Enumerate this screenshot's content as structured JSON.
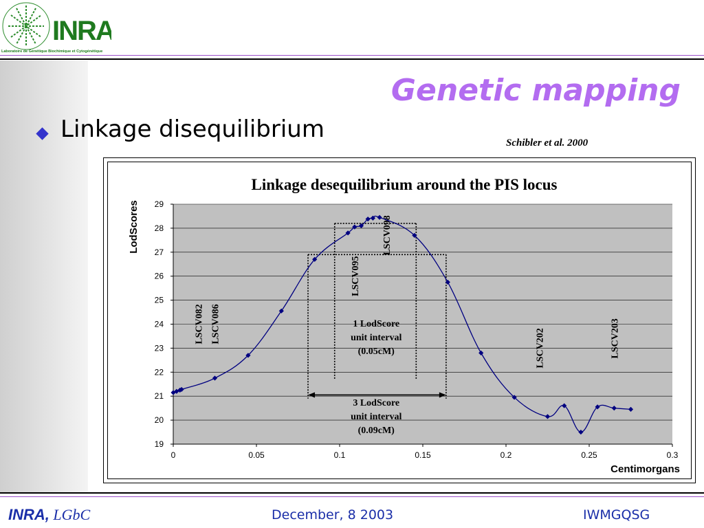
{
  "header": {
    "logo_text": "INRA",
    "lab_name": "Laboratoire de Génétique Biochimique et Cytogénétique"
  },
  "slide": {
    "title": "Genetic mapping",
    "bullet": "Linkage disequilibrium",
    "citation": "Schibler et al. 2000"
  },
  "footer": {
    "org": "INRA,",
    "lab": "LGbC",
    "date": "December, 8  2003",
    "event": "IWMGQSG"
  },
  "colors": {
    "title": "#b36cf0",
    "bullet": "#3333cc",
    "footer_text": "#1a2ea8",
    "rule_lines": "#9b4fc9",
    "plot_area": "#c0c0c0",
    "series": "#000080"
  },
  "chart_data": {
    "type": "line",
    "title": "Linkage desequilibrium around the PIS locus",
    "xlabel": "Centimorgans",
    "ylabel": "LodScores",
    "xlim": [
      0,
      0.3
    ],
    "ylim": [
      19,
      29
    ],
    "xticks": [
      0,
      0.05,
      0.1,
      0.15,
      0.2,
      0.25,
      0.3
    ],
    "xtick_labels": [
      "0",
      "0.05",
      "0.1",
      "0.15",
      "0.2",
      "0.25",
      "0.3"
    ],
    "yticks": [
      19,
      20,
      21,
      22,
      23,
      24,
      25,
      26,
      27,
      28,
      29
    ],
    "grid": "horizontal",
    "legend": "none",
    "series": [
      {
        "x": [
          0,
          0.002,
          0.004,
          0.005,
          0.025,
          0.045,
          0.065,
          0.085,
          0.105,
          0.109,
          0.113,
          0.117,
          0.12,
          0.124,
          0.145,
          0.165,
          0.185,
          0.205,
          0.225,
          0.235,
          0.245,
          0.255,
          0.265,
          0.275
        ],
        "y": [
          21.15,
          21.2,
          21.25,
          21.28,
          21.75,
          22.7,
          24.55,
          26.7,
          27.8,
          28.05,
          28.1,
          28.38,
          28.42,
          28.45,
          27.7,
          25.75,
          22.8,
          20.95,
          20.15,
          20.6,
          19.5,
          20.55,
          20.5,
          20.45
        ]
      }
    ],
    "marker_labels": [
      {
        "text": "LSCV082",
        "x": 0.015,
        "y": 24
      },
      {
        "text": "LSCV086",
        "x": 0.025,
        "y": 24
      },
      {
        "text": "LSCV095",
        "x": 0.109,
        "y": 26
      },
      {
        "text": "LSCV098",
        "x": 0.128,
        "y": 27.7
      },
      {
        "text": "LSCV202",
        "x": 0.22,
        "y": 23
      },
      {
        "text": "LSCV203",
        "x": 0.265,
        "y": 23.4
      }
    ],
    "intervals": [
      {
        "x0": 0.097,
        "x1": 0.146,
        "y0": 21.7,
        "y1": 28.2,
        "label": [
          "1 LodScore",
          "unit interval",
          "(0.05cM)"
        ],
        "label_x": 0.122,
        "label_y": 23.9
      },
      {
        "x0": 0.081,
        "x1": 0.164,
        "y0": 20.9,
        "y1": 26.9,
        "label": [
          "3 LodScore",
          "unit interval",
          "(0.09cM)"
        ],
        "label_x": 0.122,
        "label_y": 20.6
      }
    ]
  }
}
